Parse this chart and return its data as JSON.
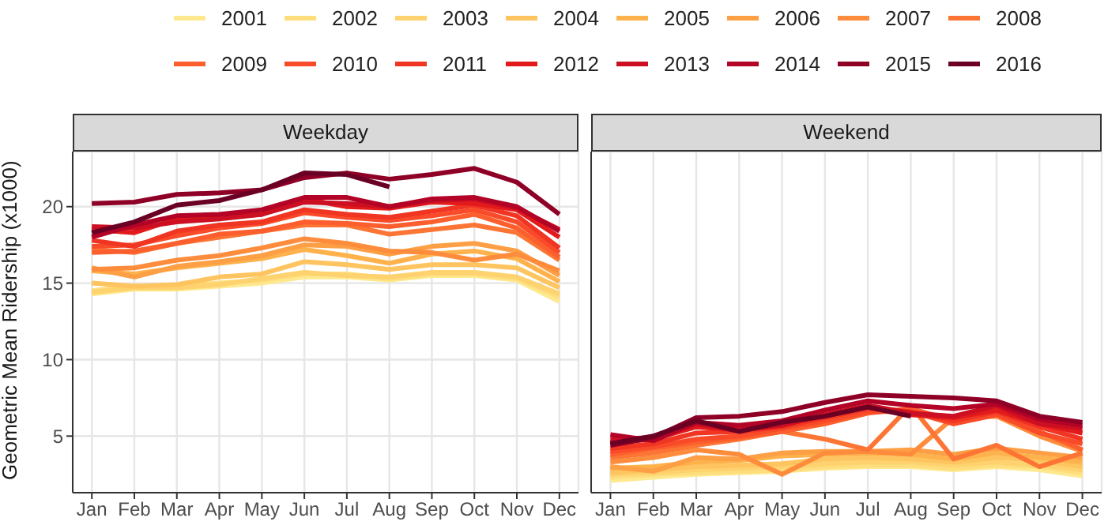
{
  "chart_data": [
    {
      "type": "line",
      "title": "Weekday",
      "ylabel": "Geometric Mean Ridership (x1000)",
      "categories": [
        "Jan",
        "Feb",
        "Mar",
        "Apr",
        "May",
        "Jun",
        "Jul",
        "Aug",
        "Sep",
        "Oct",
        "Nov",
        "Dec"
      ],
      "ylim": [
        1.3,
        23.6
      ],
      "yticks": [
        5,
        10,
        15,
        20
      ],
      "grid": true,
      "legend": "top",
      "line_style": "solid",
      "marker": "none",
      "series": [
        {
          "name": "2001",
          "color": "#fee98f",
          "values": [
            14.3,
            14.6,
            14.6,
            14.8,
            15.0,
            15.4,
            15.4,
            15.2,
            15.5,
            15.5,
            15.2,
            13.8
          ]
        },
        {
          "name": "2002",
          "color": "#fedd7d",
          "values": [
            14.5,
            14.8,
            14.8,
            15.0,
            15.2,
            15.6,
            15.6,
            15.3,
            15.6,
            15.6,
            15.3,
            14.1
          ]
        },
        {
          "name": "2003",
          "color": "#fed26e",
          "values": [
            14.4,
            14.7,
            14.7,
            14.9,
            15.3,
            15.7,
            15.5,
            15.4,
            15.7,
            15.7,
            15.4,
            14.3
          ]
        },
        {
          "name": "2004",
          "color": "#fec45f",
          "values": [
            15.0,
            14.8,
            14.9,
            15.4,
            15.6,
            16.4,
            16.2,
            15.9,
            16.2,
            16.2,
            16.0,
            14.7
          ]
        },
        {
          "name": "2005",
          "color": "#feb24c",
          "values": [
            15.8,
            15.6,
            16.0,
            16.3,
            16.6,
            17.2,
            16.8,
            16.3,
            16.9,
            17.1,
            16.6,
            15.1
          ]
        },
        {
          "name": "2006",
          "color": "#fd9f44",
          "values": [
            16.0,
            15.4,
            16.1,
            16.4,
            16.8,
            17.5,
            17.4,
            16.9,
            17.4,
            17.6,
            17.1,
            15.5
          ]
        },
        {
          "name": "2007",
          "color": "#fd8d3c",
          "values": [
            15.9,
            16.0,
            16.5,
            16.8,
            17.3,
            17.9,
            17.6,
            17.1,
            17.0,
            16.5,
            16.9,
            15.8
          ]
        },
        {
          "name": "2008",
          "color": "#fc7535",
          "values": [
            17.2,
            17.0,
            17.6,
            18.0,
            18.4,
            18.8,
            18.8,
            18.2,
            18.5,
            18.8,
            18.3,
            16.5
          ]
        },
        {
          "name": "2009",
          "color": "#fc5f2d",
          "values": [
            17.0,
            17.1,
            17.6,
            18.2,
            18.4,
            19.0,
            18.9,
            18.7,
            19.0,
            19.5,
            18.6,
            16.7
          ]
        },
        {
          "name": "2010",
          "color": "#f94a29",
          "values": [
            17.4,
            17.5,
            18.1,
            18.6,
            18.9,
            19.6,
            19.3,
            19.1,
            19.4,
            19.8,
            19.0,
            17.0
          ]
        },
        {
          "name": "2011",
          "color": "#f03523",
          "values": [
            17.8,
            17.4,
            18.4,
            18.8,
            19.0,
            19.8,
            19.5,
            19.3,
            19.7,
            20.1,
            19.4,
            17.3
          ]
        },
        {
          "name": "2012",
          "color": "#e31a1c",
          "values": [
            18.5,
            18.3,
            19.2,
            19.3,
            19.5,
            20.5,
            20.0,
            19.9,
            20.3,
            20.2,
            19.8,
            18.0
          ]
        },
        {
          "name": "2013",
          "color": "#cc0f22",
          "values": [
            18.7,
            18.6,
            19.0,
            19.2,
            19.5,
            20.3,
            20.2,
            20.0,
            20.4,
            20.5,
            19.9,
            18.5
          ]
        },
        {
          "name": "2014",
          "color": "#b30326",
          "values": [
            18.0,
            18.8,
            19.4,
            19.5,
            19.8,
            20.6,
            20.6,
            20.0,
            20.5,
            20.6,
            20.0,
            18.4
          ]
        },
        {
          "name": "2015",
          "color": "#8f0027",
          "values": [
            20.2,
            20.3,
            20.8,
            20.9,
            21.1,
            21.9,
            22.2,
            21.8,
            22.1,
            22.5,
            21.6,
            19.5
          ]
        },
        {
          "name": "2016",
          "color": "#6a0124",
          "values": [
            18.3,
            19.0,
            20.1,
            20.4,
            21.1,
            22.2,
            22.1,
            21.3,
            null,
            null,
            null,
            null
          ]
        }
      ]
    },
    {
      "type": "line",
      "title": "Weekend",
      "categories": [
        "Jan",
        "Feb",
        "Mar",
        "Apr",
        "May",
        "Jun",
        "Jul",
        "Aug",
        "Sep",
        "Oct",
        "Nov",
        "Dec"
      ],
      "ylim": [
        1.3,
        23.6
      ],
      "yticks": [
        5,
        10,
        15,
        20
      ],
      "tick_labels": "x",
      "grid": true,
      "line_style": "solid",
      "marker": "none",
      "series": [
        {
          "color": "#fee98f",
          "values": [
            2.1,
            2.3,
            2.5,
            2.6,
            2.7,
            2.9,
            3.0,
            3.0,
            2.8,
            3.0,
            2.8,
            2.4
          ]
        },
        {
          "color": "#fedd7d",
          "values": [
            2.3,
            2.5,
            2.6,
            2.7,
            2.8,
            3.0,
            3.1,
            3.1,
            2.9,
            3.1,
            3.0,
            2.6
          ]
        },
        {
          "color": "#fed26e",
          "values": [
            2.5,
            2.6,
            2.8,
            2.9,
            3.0,
            3.2,
            3.3,
            3.3,
            3.1,
            3.3,
            3.1,
            2.8
          ]
        },
        {
          "color": "#fec45f",
          "values": [
            2.6,
            2.8,
            3.0,
            3.1,
            3.2,
            3.5,
            3.6,
            3.5,
            3.3,
            3.6,
            3.4,
            3.0
          ]
        },
        {
          "color": "#feb24c",
          "values": [
            2.9,
            3.0,
            3.3,
            3.4,
            3.7,
            3.8,
            3.9,
            3.8,
            3.5,
            3.9,
            3.6,
            3.3
          ]
        },
        {
          "color": "#fd9f44",
          "values": [
            3.0,
            2.7,
            3.6,
            3.5,
            3.9,
            4.0,
            4.0,
            4.1,
            3.8,
            4.2,
            3.9,
            3.6
          ]
        },
        {
          "color": "#fd8d3c",
          "values": [
            3.3,
            3.6,
            4.1,
            3.8,
            2.5,
            3.9,
            4.0,
            3.8,
            6.2,
            6.3,
            5.0,
            4.0
          ]
        },
        {
          "color": "#fc7535",
          "values": [
            3.6,
            3.9,
            4.4,
            4.8,
            5.3,
            4.8,
            4.1,
            7.0,
            3.5,
            4.4,
            3.0,
            3.9
          ]
        },
        {
          "color": "#fc5f2d",
          "values": [
            3.8,
            4.2,
            4.6,
            4.9,
            5.3,
            5.8,
            6.5,
            6.8,
            6.0,
            6.5,
            5.3,
            4.1
          ]
        },
        {
          "color": "#f94a29",
          "values": [
            4.0,
            4.3,
            4.8,
            5.0,
            5.5,
            6.0,
            6.6,
            6.6,
            5.8,
            6.4,
            5.2,
            4.5
          ]
        },
        {
          "color": "#f03523",
          "values": [
            4.2,
            4.5,
            5.2,
            5.3,
            5.6,
            6.2,
            6.8,
            6.6,
            6.0,
            6.6,
            5.6,
            4.8
          ]
        },
        {
          "color": "#e31a1c",
          "values": [
            4.6,
            4.8,
            5.6,
            5.4,
            5.8,
            6.3,
            6.9,
            6.4,
            6.2,
            6.7,
            5.8,
            5.2
          ]
        },
        {
          "color": "#cc0f22",
          "values": [
            4.8,
            4.9,
            5.8,
            5.4,
            5.7,
            6.4,
            7.0,
            6.5,
            6.3,
            7.0,
            5.8,
            5.5
          ]
        },
        {
          "color": "#b30326",
          "values": [
            5.1,
            4.7,
            5.9,
            5.7,
            6.0,
            6.7,
            7.3,
            7.0,
            6.8,
            7.1,
            6.1,
            5.7
          ]
        },
        {
          "color": "#8f0027",
          "values": [
            4.4,
            4.9,
            6.2,
            6.3,
            6.6,
            7.2,
            7.7,
            7.6,
            7.5,
            7.3,
            6.3,
            5.9
          ]
        },
        {
          "color": "#6a0124",
          "values": [
            4.5,
            5.0,
            6.0,
            5.3,
            5.9,
            6.3,
            6.9,
            6.3,
            null,
            null,
            null,
            null
          ]
        }
      ]
    }
  ]
}
